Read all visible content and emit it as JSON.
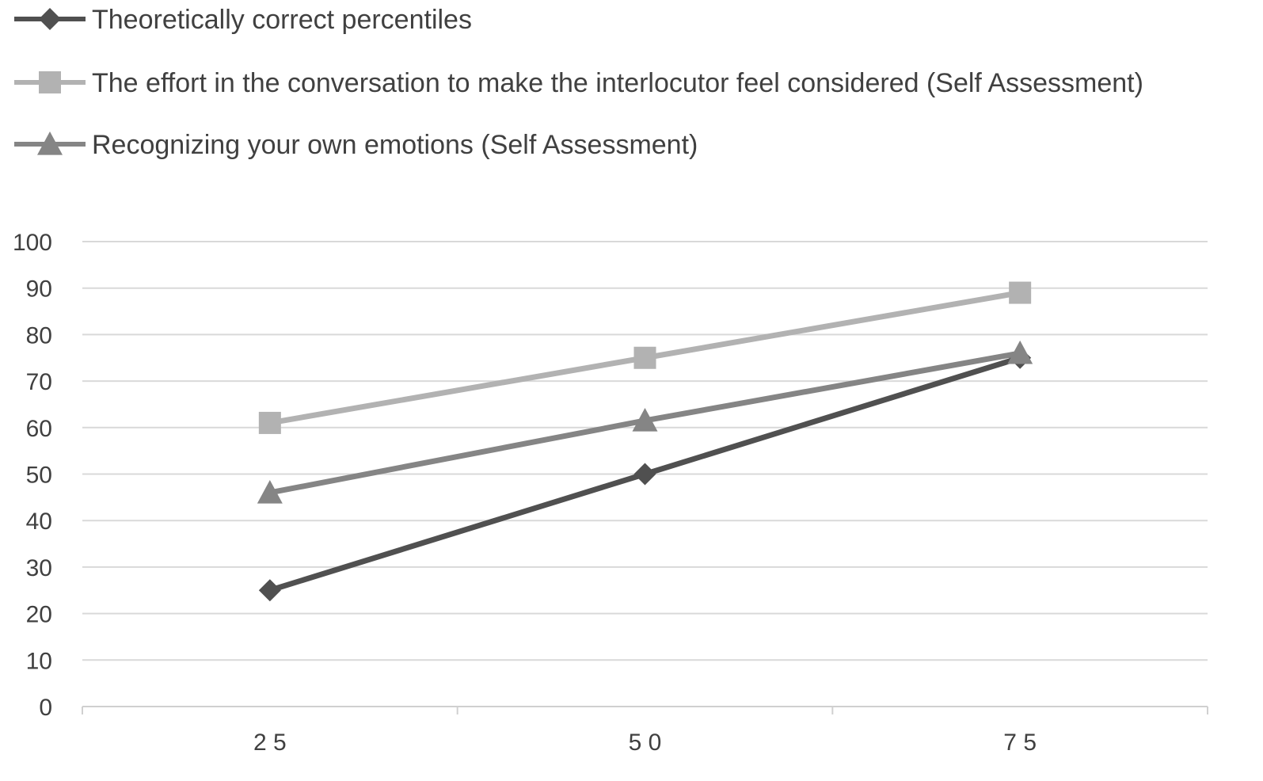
{
  "chart_data": {
    "type": "line",
    "title": "",
    "xlabel": "",
    "ylabel": "",
    "categories": [
      "2 5",
      "5 0",
      "7 5"
    ],
    "ylim": [
      0,
      100
    ],
    "yticks": [
      0,
      10,
      20,
      30,
      40,
      50,
      60,
      70,
      80,
      90,
      100
    ],
    "grid": true,
    "legend_position": "top",
    "series": [
      {
        "name": "Theoretically correct percentiles",
        "values": [
          25,
          50,
          75
        ],
        "marker": "diamond",
        "color": "#505050"
      },
      {
        "name": "The effort in the conversation to make the interlocutor feel considered (Self Assessment)",
        "values": [
          61,
          75,
          89
        ],
        "marker": "square",
        "color": "#b2b2b2"
      },
      {
        "name": "Recognizing your own emotions (Self Assessment)",
        "values": [
          46,
          61.5,
          76
        ],
        "marker": "triangle",
        "color": "#858585"
      }
    ]
  }
}
